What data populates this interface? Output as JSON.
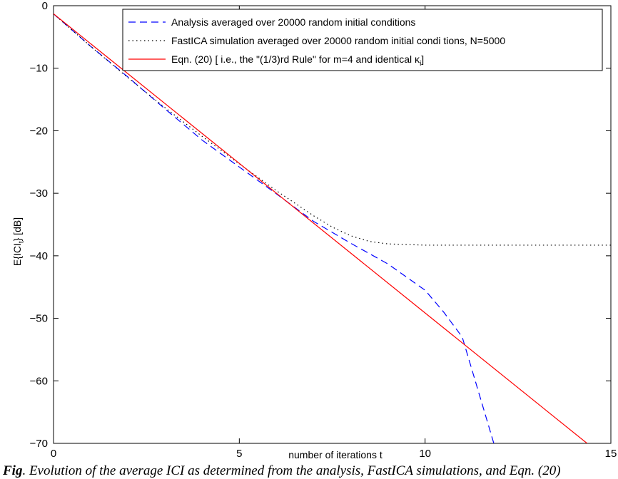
{
  "caption": {
    "label": "Fig",
    "text": "Evolution of the average ICI as determined from the analysis, FastICA simulations, and Eqn. (20)"
  },
  "chart_data": {
    "type": "line",
    "title": "",
    "xlabel": "number of iterations  t",
    "ylabel": "E{ICI_t}  [dB]",
    "xlim": [
      0,
      15
    ],
    "ylim": [
      -70,
      0
    ],
    "xticks": [
      0,
      5,
      10,
      15
    ],
    "yticks": [
      0,
      -10,
      -20,
      -30,
      -40,
      -50,
      -60,
      -70
    ],
    "grid": false,
    "legend_position": "top-right",
    "series": [
      {
        "name": "Analysis averaged over 20000 random initial conditions",
        "style": "dashed",
        "color": "#0000ff",
        "x": [
          0,
          1,
          2,
          3,
          4,
          5,
          6,
          7,
          8,
          9,
          10,
          10.5,
          11,
          11.3,
          11.6,
          11.85
        ],
        "y": [
          -1.3,
          -6.5,
          -11.4,
          -16.5,
          -21.5,
          -25.8,
          -30.1,
          -34.5,
          -38.0,
          -41.3,
          -45.5,
          -49.0,
          -53.0,
          -59.0,
          -65.0,
          -70.0
        ]
      },
      {
        "name": "FastICA simulation averaged over 20000 random initial condi tions, N=5000",
        "style": "dotted",
        "color": "#000000",
        "x": [
          0,
          1,
          2,
          3,
          4,
          5,
          6,
          6.5,
          7,
          7.5,
          8,
          8.5,
          9,
          10,
          11,
          12,
          13,
          14,
          15
        ],
        "y": [
          -1.3,
          -6.5,
          -11.5,
          -16.3,
          -20.9,
          -25.3,
          -29.6,
          -31.6,
          -33.6,
          -35.4,
          -36.8,
          -37.7,
          -38.1,
          -38.3,
          -38.3,
          -38.3,
          -38.3,
          -38.3,
          -38.3
        ]
      },
      {
        "name": "Eqn. (20) [ i.e., the \"(1/3)rd Rule\" for m=4 and identical κ_i]",
        "style": "solid",
        "color": "#ff0000",
        "x": [
          0,
          14.36
        ],
        "y": [
          -1.3,
          -70.0
        ]
      }
    ]
  }
}
